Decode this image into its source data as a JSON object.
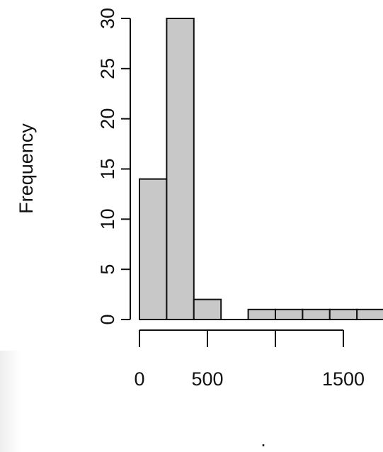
{
  "chart_data": {
    "type": "bar",
    "title": "",
    "xlabel": ".",
    "ylabel": "Frequency",
    "bin_width": 200,
    "bins": [
      {
        "start": 0,
        "end": 200,
        "count": 14
      },
      {
        "start": 200,
        "end": 400,
        "count": 30
      },
      {
        "start": 400,
        "end": 600,
        "count": 2
      },
      {
        "start": 600,
        "end": 800,
        "count": 0
      },
      {
        "start": 800,
        "end": 1000,
        "count": 1
      },
      {
        "start": 1000,
        "end": 1200,
        "count": 1
      },
      {
        "start": 1200,
        "end": 1400,
        "count": 1
      },
      {
        "start": 1400,
        "end": 1600,
        "count": 1
      },
      {
        "start": 1600,
        "end": 1800,
        "count": 1
      }
    ],
    "x_ticks": [
      0,
      500,
      1000,
      1500
    ],
    "x_tick_labels": [
      "0",
      "500",
      "",
      "1500"
    ],
    "y_ticks": [
      0,
      5,
      10,
      15,
      20,
      25,
      30
    ],
    "y_tick_labels": [
      "0",
      "5",
      "10",
      "15",
      "20",
      "25",
      "30"
    ],
    "xlim": [
      0,
      1800
    ],
    "ylim": [
      0,
      30
    ],
    "grid": false,
    "bar_color": "#c8c8c8",
    "edge_color": "#111111"
  }
}
